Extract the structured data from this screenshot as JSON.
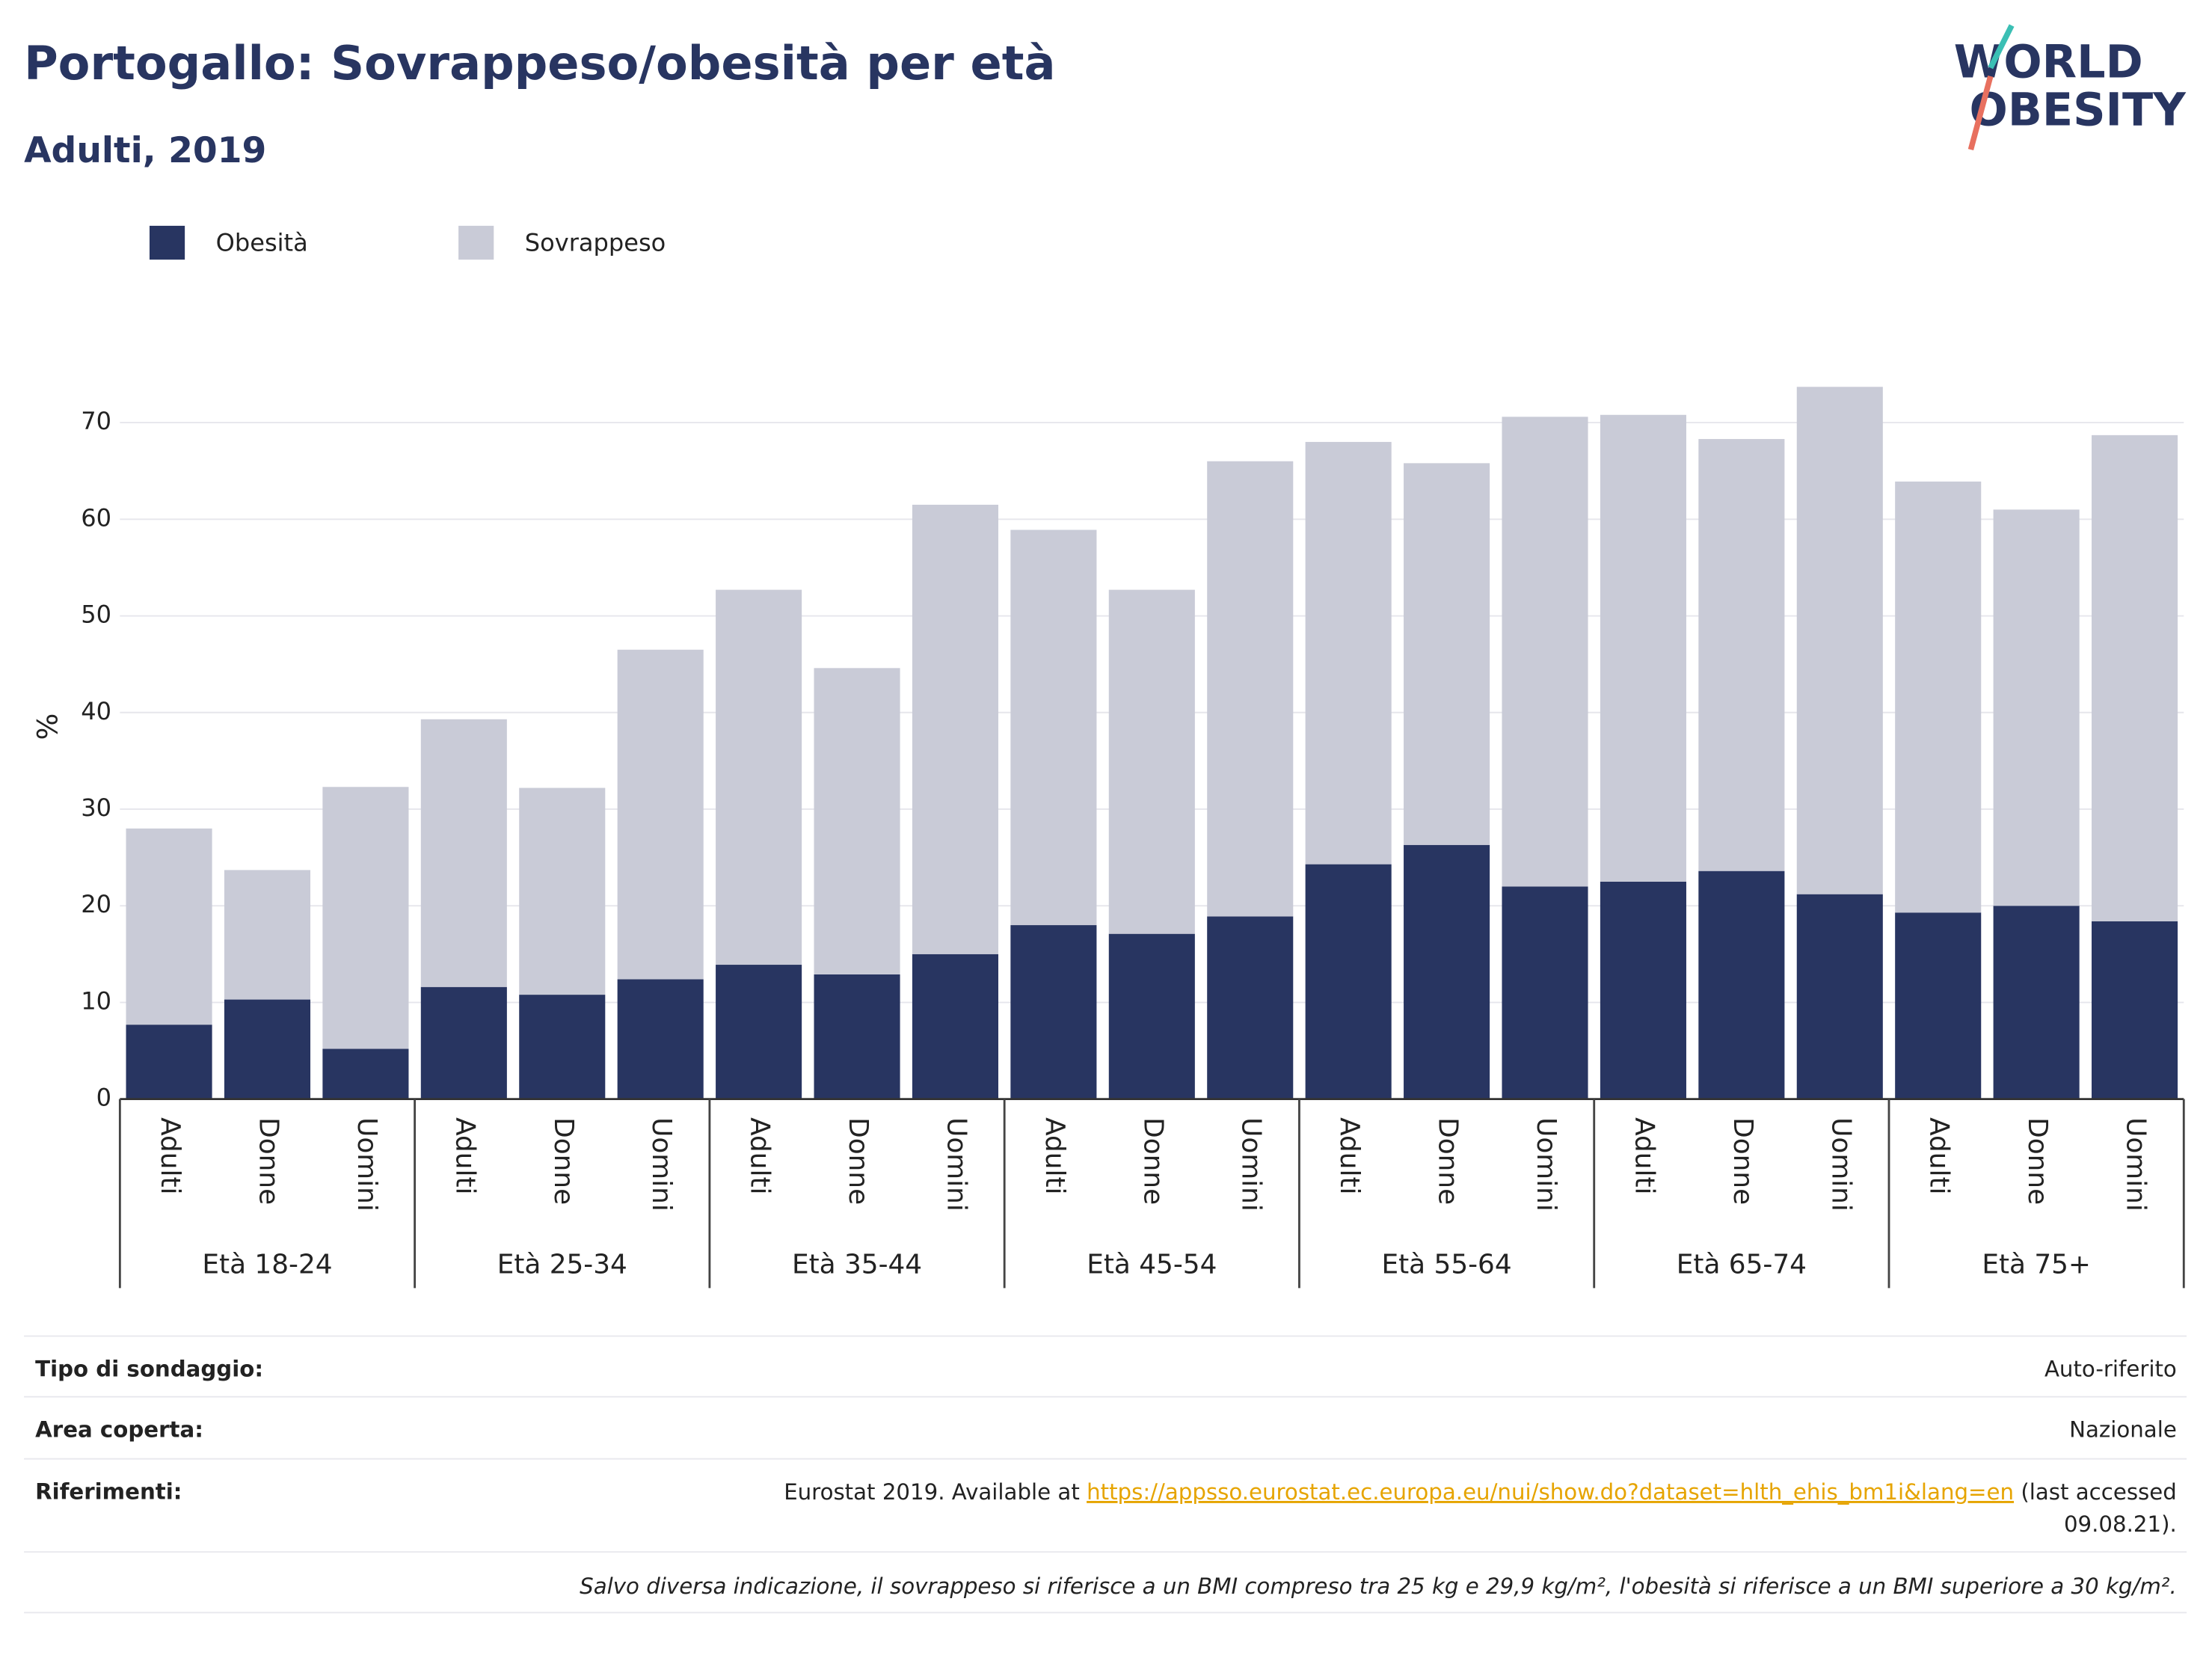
{
  "chart_data": {
    "type": "stacked_bar",
    "title": "Portogallo: Sovrappeso/obesità per età",
    "subtitle": "Adulti, 2019",
    "y_label": "%",
    "groups": [
      "Età 18-24",
      "Età 25-34",
      "Età 35-44",
      "Età 45-54",
      "Età 55-64",
      "Età 65-74",
      "Età 75+"
    ],
    "categories": [
      "Adulti",
      "Donne",
      "Uomini",
      "Adulti",
      "Donne",
      "Uomini",
      "Adulti",
      "Donne",
      "Uomini",
      "Adulti",
      "Donne",
      "Uomini",
      "Adulti",
      "Donne",
      "Uomini",
      "Adulti",
      "Donne",
      "Uomini",
      "Adulti",
      "Donne",
      "Uomini"
    ],
    "series": [
      {
        "name": "Obesità",
        "color": "#283561",
        "values": [
          7.7,
          10.3,
          5.2,
          11.6,
          10.8,
          12.4,
          13.9,
          12.9,
          15.0,
          18.0,
          17.1,
          18.9,
          24.3,
          26.3,
          22.0,
          22.5,
          23.6,
          21.2,
          19.3,
          20.0,
          18.4
        ]
      },
      {
        "name": "Sovrappeso",
        "color": "#c9cbd7",
        "values": [
          20.3,
          13.4,
          27.1,
          27.7,
          21.4,
          34.1,
          38.8,
          31.7,
          46.5,
          40.9,
          35.6,
          47.1,
          43.7,
          39.5,
          48.6,
          48.3,
          44.7,
          52.5,
          44.6,
          41.0,
          50.3
        ]
      }
    ],
    "ylim": [
      0,
      80
    ],
    "yticks": [
      0,
      10,
      20,
      30,
      40,
      50,
      60,
      70
    ],
    "grid": true
  },
  "logo": {
    "line1": "WORLD",
    "line2": "OBESITY"
  },
  "footer": {
    "survey_label": "Tipo di sondaggio:",
    "survey_value": "Auto-riferito",
    "area_label": "Area coperta:",
    "area_value": "Nazionale",
    "ref_label": "Riferimenti:",
    "ref_prefix": "Eurostat 2019. Available at ",
    "ref_link": "https://appsso.eurostat.ec.europa.eu/nui/show.do?dataset=hlth_ehis_bm1i&lang=en",
    "ref_suffix_lines": [
      " (last accessed",
      "09.08.21)."
    ],
    "note": "Salvo diversa indicazione, il sovrappeso si riferisce a un BMI compreso tra 25 kg e 29,9 kg/m², l'obesità si riferisce a un BMI superiore a 30 kg/m²."
  }
}
